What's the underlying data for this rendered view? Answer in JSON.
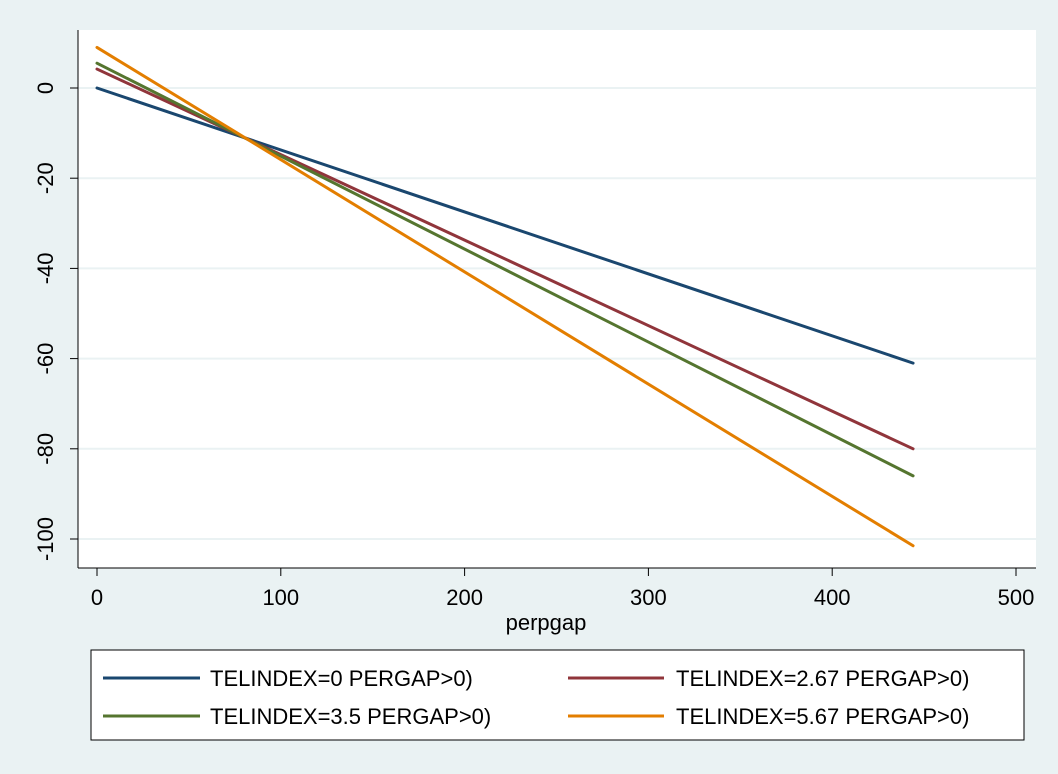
{
  "chart_data": {
    "type": "line",
    "title": "",
    "xlabel": "perpgap",
    "ylabel": "",
    "xlim": [
      0,
      500
    ],
    "ylim": [
      -100,
      0
    ],
    "x_ticks": [
      0,
      100,
      200,
      300,
      400,
      500
    ],
    "x_tick_labels": [
      "0",
      "100",
      "200",
      "300",
      "400",
      "500"
    ],
    "y_ticks": [
      0,
      -20,
      -40,
      -60,
      -80,
      -100
    ],
    "y_tick_labels": [
      "0",
      "-20",
      "-40",
      "-60",
      "-80",
      "-100"
    ],
    "grid": true,
    "legend_position": "bottom",
    "series": [
      {
        "name": "TELINDEX=0 PERGAP>0)",
        "color": "#1a476f",
        "x": [
          0,
          444
        ],
        "y": [
          0,
          -61
        ]
      },
      {
        "name": "TELINDEX=2.67 PERGAP>0)",
        "color": "#90353b",
        "x": [
          0,
          444
        ],
        "y": [
          4.2,
          -80
        ]
      },
      {
        "name": "TELINDEX=3.5 PERGAP>0)",
        "color": "#55752f",
        "x": [
          0,
          444
        ],
        "y": [
          5.5,
          -86
        ]
      },
      {
        "name": "TELINDEX=5.67 PERGAP>0)",
        "color": "#e37e00",
        "x": [
          0,
          444
        ],
        "y": [
          9,
          -101.5
        ]
      }
    ]
  }
}
